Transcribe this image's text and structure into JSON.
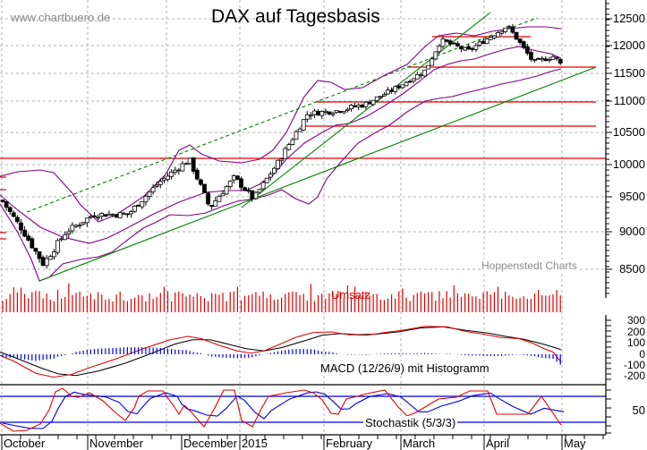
{
  "header": {
    "title": "DAX auf Tagesbasis",
    "site": "www.chartbuero.de",
    "source": "Hoppenstedt Charts"
  },
  "panels": {
    "volume_label": "Umsatz",
    "macd_label": "MACD (12/26/9) mit Histogramm",
    "stoch_label": "Stochastik (5/3/3)"
  },
  "colors": {
    "candle": "#000000",
    "bollinger": "#800080",
    "trend": "#008000",
    "resistance": "#e00000",
    "volume": "#e00000",
    "macd": "#e00000",
    "signal": "#000000",
    "histogram": "#0000dd",
    "stoch_k": "#e00000",
    "stoch_d": "#0000dd",
    "grid": "#b0b0b0"
  },
  "chart_data": {
    "type": "candlestick",
    "title": "DAX auf Tagesbasis",
    "xlabel": "",
    "ylabel": "",
    "x_ticks": [
      "October",
      "November",
      "December",
      "2015",
      "February",
      "March",
      "April",
      "May"
    ],
    "price_axis": {
      "ticks": [
        8500,
        9000,
        9500,
        10000,
        10500,
        11000,
        11500,
        12000,
        12500
      ],
      "ylim": [
        8300,
        12650
      ]
    },
    "horizontal_lines": [
      10100,
      10620,
      11000,
      11600,
      12150
    ],
    "trendlines": [
      {
        "style": "solid",
        "from": [
          "Oct-16",
          8350
        ],
        "to": [
          "May-05",
          11580
        ]
      },
      {
        "style": "solid",
        "from": [
          "Dec-31",
          9450
        ],
        "to": [
          "Mar-27",
          12000
        ]
      },
      {
        "style": "dashed",
        "from": [
          "Oct-15",
          9430
        ],
        "to": [
          "Apr-10",
          12500
        ]
      }
    ],
    "price_path": [
      {
        "x": "Oct-01",
        "close": 9450
      },
      {
        "x": "Oct-08",
        "close": 9050
      },
      {
        "x": "Oct-16",
        "close": 8570
      },
      {
        "x": "Oct-24",
        "close": 8990
      },
      {
        "x": "Nov-03",
        "close": 9250
      },
      {
        "x": "Nov-14",
        "close": 9250
      },
      {
        "x": "Nov-24",
        "close": 9730
      },
      {
        "x": "Dec-05",
        "close": 10080
      },
      {
        "x": "Dec-16",
        "close": 9340
      },
      {
        "x": "Dec-29",
        "close": 9800
      },
      {
        "x": "Jan-06",
        "close": 9470
      },
      {
        "x": "Jan-15",
        "close": 10030
      },
      {
        "x": "Jan-26",
        "close": 10800
      },
      {
        "x": "Feb-06",
        "close": 10850
      },
      {
        "x": "Feb-16",
        "close": 10950
      },
      {
        "x": "Feb-26",
        "close": 11200
      },
      {
        "x": "Mar-10",
        "close": 11550
      },
      {
        "x": "Mar-16",
        "close": 12100
      },
      {
        "x": "Mar-26",
        "close": 11900
      },
      {
        "x": "Apr-10",
        "close": 12370
      },
      {
        "x": "Apr-20",
        "close": 11700
      },
      {
        "x": "Apr-28",
        "close": 11810
      },
      {
        "x": "May-05",
        "close": 11390
      }
    ],
    "macd_axis": {
      "ticks": [
        300,
        200,
        100,
        0,
        -100,
        -200
      ]
    },
    "stoch_axis": {
      "ticks": [
        50
      ],
      "levels": [
        20,
        80
      ]
    }
  }
}
